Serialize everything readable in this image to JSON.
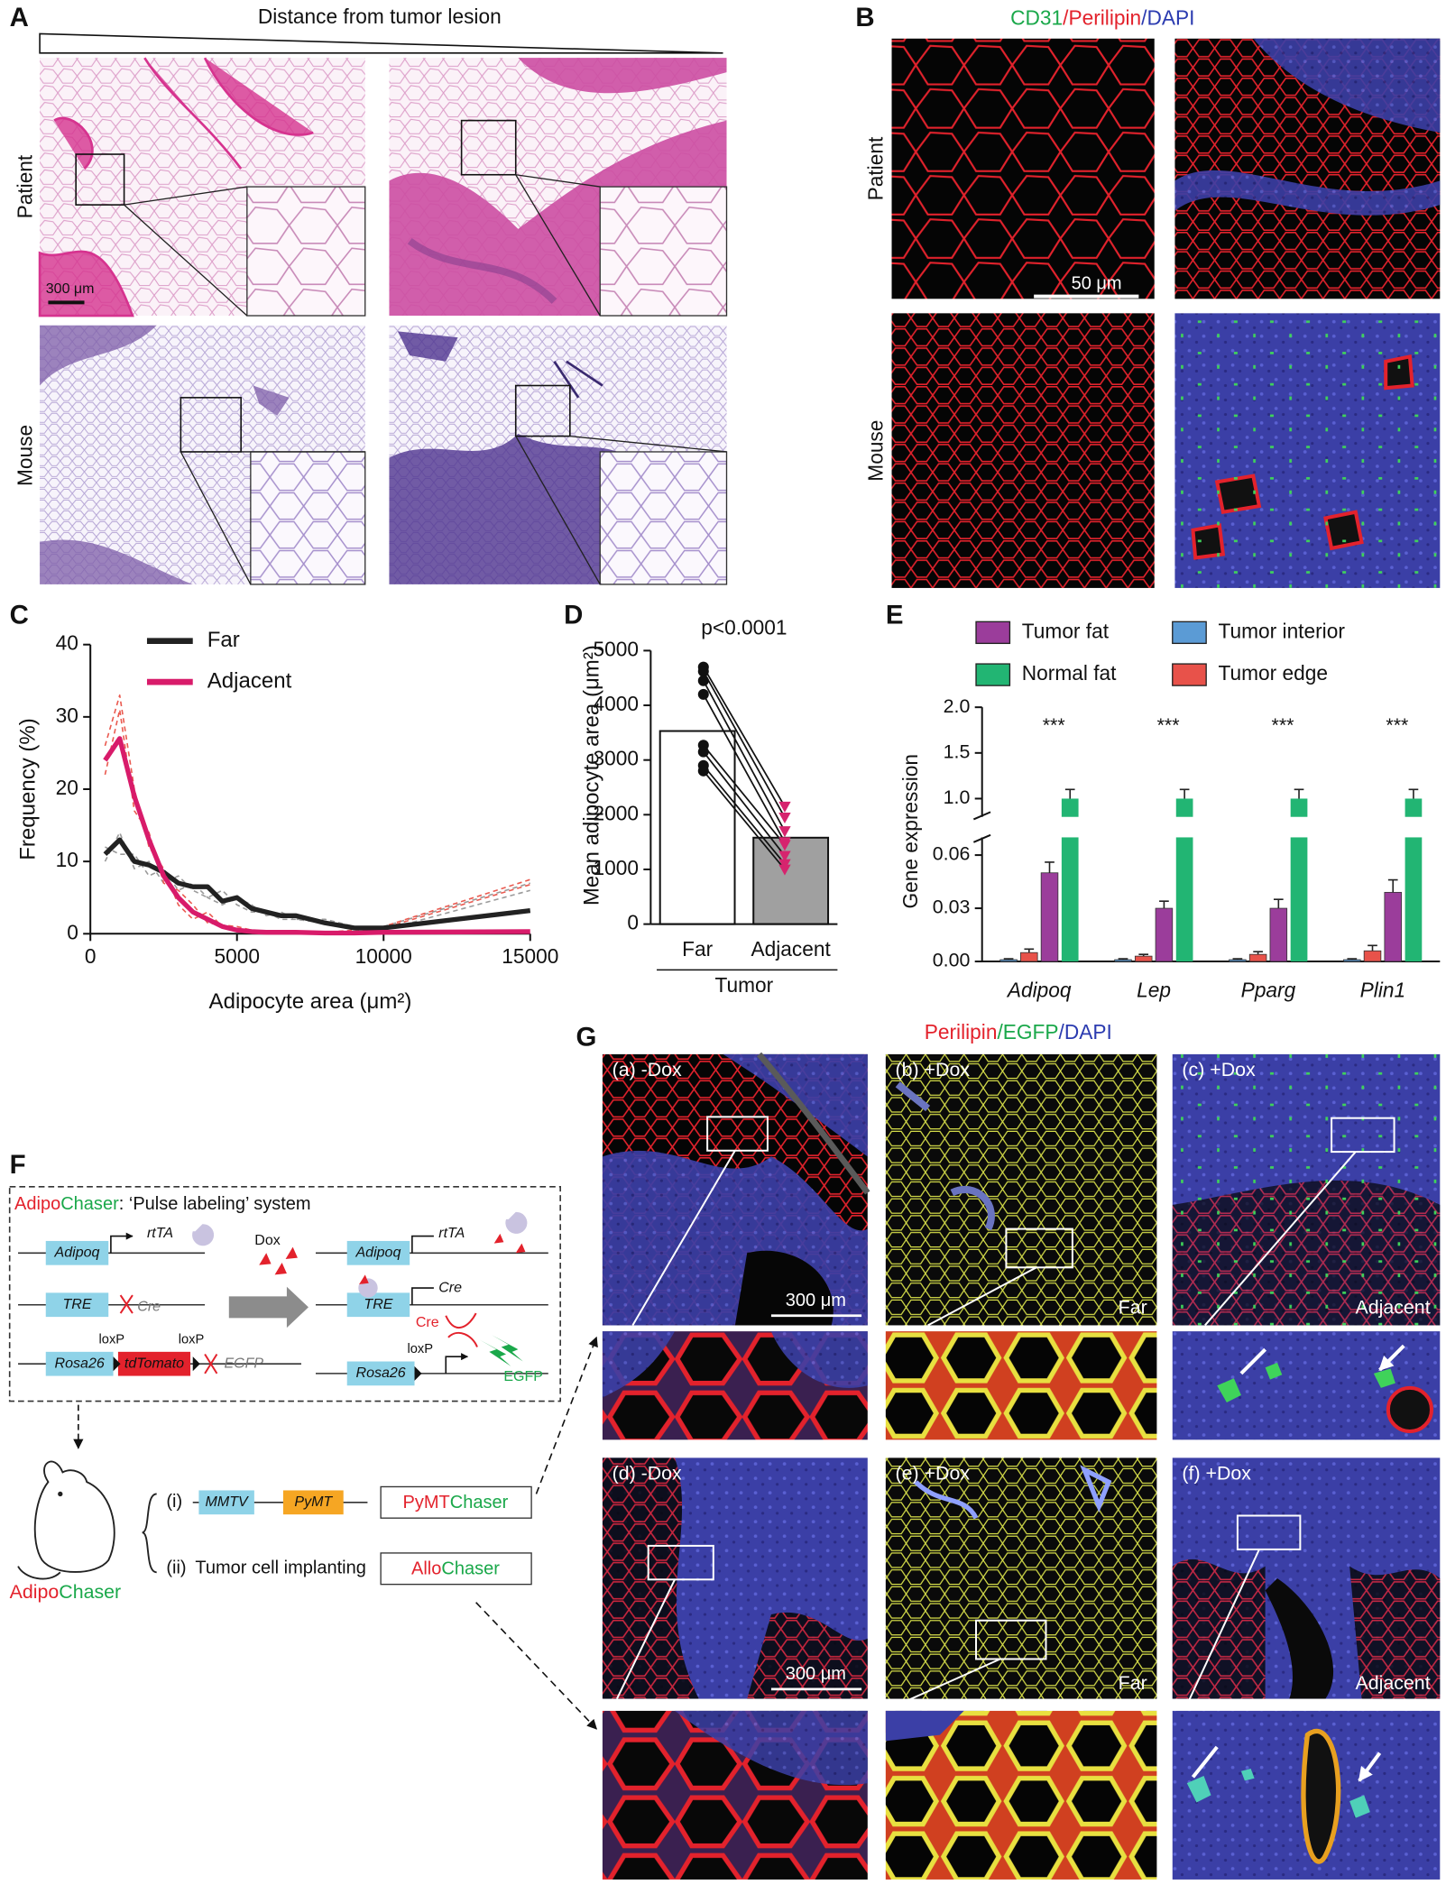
{
  "panels": {
    "A": {
      "label": "A",
      "title": "Distance from tumor lesion",
      "rows": [
        "Patient",
        "Mouse"
      ],
      "scale_bar": "300 μm"
    },
    "B": {
      "label": "B",
      "title_parts": [
        "CD31",
        "/Perilipin",
        "/DAPI"
      ],
      "rows": [
        "Patient",
        "Mouse"
      ],
      "scale_bar": "50 μm"
    },
    "C": {
      "label": "C"
    },
    "D": {
      "label": "D"
    },
    "E": {
      "label": "E"
    },
    "F": {
      "label": "F",
      "title_parts": [
        "Adipo",
        "Chaser",
        ": ‘Pulse labeling’ system"
      ],
      "before": {
        "promoter1": "Adipoq",
        "gene1": "rtTA",
        "promoter2": "TRE",
        "gene2": "Cre",
        "promoter3": "Rosa26",
        "reporter": "tdTomato",
        "loxp": [
          "loxP",
          "loxP"
        ],
        "gene3": "EGFP"
      },
      "treatment": "Dox",
      "after": {
        "promoter1": "Adipoq",
        "gene1": "rtTA",
        "promoter2": "TRE",
        "gene2": "Cre",
        "cre": "Cre",
        "loxp": "loxP",
        "promoter3": "Rosa26",
        "gene3": "EGFP"
      },
      "mouse_parts": [
        "Adipo",
        "Chaser"
      ],
      "models": [
        {
          "index": "(i)",
          "promoter": "MMTV",
          "gene": "PyMT",
          "name_parts": [
            "PyMT",
            "Chaser"
          ]
        },
        {
          "index": "(ii)",
          "text": "Tumor cell implanting",
          "name_parts": [
            "Allo",
            "Chaser"
          ]
        }
      ]
    },
    "G": {
      "label": "G",
      "title_parts": [
        "Perilipin",
        "/EGFP",
        "/DAPI"
      ],
      "panels": [
        "(a) -Dox",
        "(b) +Dox",
        "(c) +Dox",
        "(d) -Dox",
        "(e) +Dox",
        "(f) +Dox"
      ],
      "scale_bar": "300 μm",
      "positions": [
        "Far",
        "Adjacent"
      ]
    }
  },
  "chart_data": [
    {
      "type": "line",
      "x_label": "Adipocyte area (μm²)",
      "y_label": "Frequency (%)",
      "x": [
        500,
        1000,
        1500,
        2000,
        2500,
        3000,
        3500,
        4000,
        4500,
        5000,
        5500,
        6000,
        6500,
        7000,
        8000,
        9000,
        10000,
        15000
      ],
      "series": [
        {
          "color": "#9a9a9a",
          "dashed": true,
          "values": [
            10,
            14,
            9,
            10,
            7,
            8,
            6,
            5,
            6,
            4,
            3,
            3,
            2,
            2,
            1.5,
            1,
            1,
            7
          ]
        },
        {
          "color": "#9a9a9a",
          "dashed": true,
          "values": [
            12,
            11,
            11,
            8,
            9,
            6,
            7,
            5,
            4,
            5,
            4,
            2.5,
            3,
            2,
            2,
            1,
            0.5,
            6
          ]
        },
        {
          "color": "#ea5a50",
          "dashed": true,
          "values": [
            26,
            33,
            20,
            12,
            9,
            4,
            2,
            3,
            1,
            0.5,
            0.3,
            0.3,
            0.2,
            0.2,
            0.2,
            0.5,
            1,
            7.5
          ]
        },
        {
          "color": "#ea5a50",
          "dashed": true,
          "values": [
            22,
            31,
            17,
            14,
            7,
            6,
            4,
            1.5,
            1.2,
            1,
            0.5,
            0.3,
            0.2,
            0.2,
            0.2,
            0.3,
            0.8,
            6.8
          ]
        },
        {
          "name": "Far",
          "color": "#222222",
          "values": [
            11,
            13,
            10,
            9.5,
            8.5,
            7,
            6.5,
            6.5,
            4.5,
            5,
            3.5,
            3,
            2.5,
            2.5,
            1.5,
            0.8,
            0.8,
            3.2
          ]
        },
        {
          "name": "Adjacent",
          "color": "#d81b6a",
          "values": [
            24,
            27,
            19,
            13,
            8,
            5,
            3,
            2,
            1,
            0.5,
            0.3,
            0.2,
            0.2,
            0.2,
            0.1,
            0.1,
            0.2,
            0.3
          ]
        }
      ],
      "xlim": [
        0,
        15000
      ],
      "xticks": [
        0,
        5000,
        10000,
        15000
      ],
      "ylim": [
        0,
        40
      ],
      "yticks": [
        0,
        10,
        20,
        30,
        40
      ]
    },
    {
      "type": "bar",
      "y_label": "Mean adipocyte area (μm²)",
      "annotation": "p<0.0001",
      "group_label": "Tumor",
      "categories": [
        "Far",
        "Adjacent"
      ],
      "values": [
        3530,
        1580
      ],
      "colors": [
        "#ffffff",
        "#a0a0a0"
      ],
      "points": [
        [
          4700,
          4620,
          4450,
          4200,
          3270,
          3150,
          2900,
          2800
        ],
        [
          2150,
          1950,
          1700,
          1500,
          1450,
          1250,
          1100,
          1000
        ]
      ],
      "point_colors": [
        "#111111",
        "#d6246e"
      ],
      "ylim": [
        0,
        5000
      ],
      "yticks": [
        0,
        1000,
        2000,
        3000,
        4000,
        5000
      ]
    },
    {
      "type": "broken-bar",
      "y_label": "Gene expression",
      "categories": [
        "Adipoq",
        "Lep",
        "Pparg",
        "Plin1"
      ],
      "series": [
        {
          "name": "Tumor interior",
          "color": "#5b9bd5",
          "values": [
            0.001,
            0.001,
            0.001,
            0.001
          ],
          "errors": [
            0.0005,
            0.0005,
            0.0005,
            0.0005
          ]
        },
        {
          "name": "Tumor edge",
          "color": "#e8524a",
          "values": [
            0.005,
            0.003,
            0.004,
            0.006
          ],
          "errors": [
            0.002,
            0.001,
            0.0015,
            0.003
          ]
        },
        {
          "name": "Tumor fat",
          "color": "#9b3d9b",
          "values": [
            0.05,
            0.03,
            0.03,
            0.039
          ],
          "errors": [
            0.006,
            0.004,
            0.005,
            0.007
          ]
        },
        {
          "name": "Normal fat",
          "color": "#22b573",
          "values": [
            1,
            1,
            1,
            1
          ],
          "errors": [
            0.1,
            0.1,
            0.1,
            0.1
          ]
        }
      ],
      "annotations": [
        "***",
        "***",
        "***",
        "***"
      ],
      "ylim": [
        0,
        0.07
      ],
      "yticks": [
        {
          "value": 0,
          "label": "0.00"
        },
        {
          "value": 0.03,
          "label": "0.03"
        },
        {
          "value": 0.06,
          "label": "0.06"
        }
      ],
      "ylim_upper": [
        0.8,
        2.0
      ],
      "yticks_upper": [
        {
          "value": 1,
          "label": "1.0"
        },
        {
          "value": 1.5,
          "label": "1.5"
        },
        {
          "value": 2,
          "label": "2.0"
        }
      ]
    }
  ]
}
